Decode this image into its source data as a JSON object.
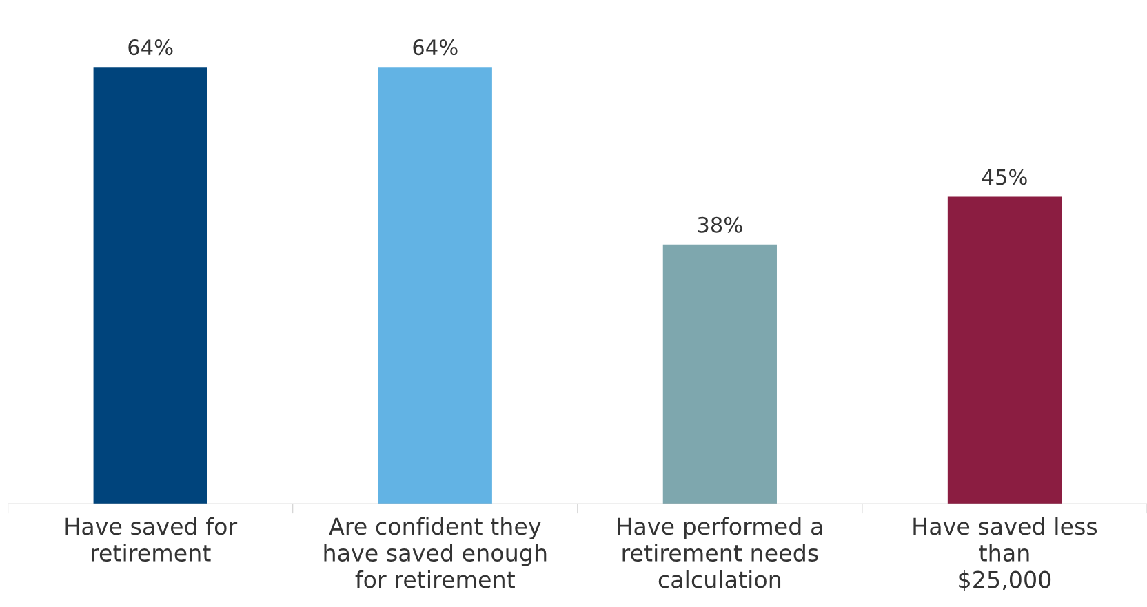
{
  "chart_data": {
    "type": "bar",
    "categories": [
      "Have saved for\nretirement",
      "Are confident they\nhave saved enough\nfor retirement",
      "Have performed a\nretirement needs\ncalculation",
      "Have saved less\nthan\n$25,000"
    ],
    "values": [
      64,
      64,
      38,
      45
    ],
    "colors": [
      "#00447c",
      "#62b3e4",
      "#7ea7ae",
      "#8b1d41"
    ],
    "value_labels": [
      "64%",
      "64%",
      "38%",
      "45%"
    ]
  }
}
